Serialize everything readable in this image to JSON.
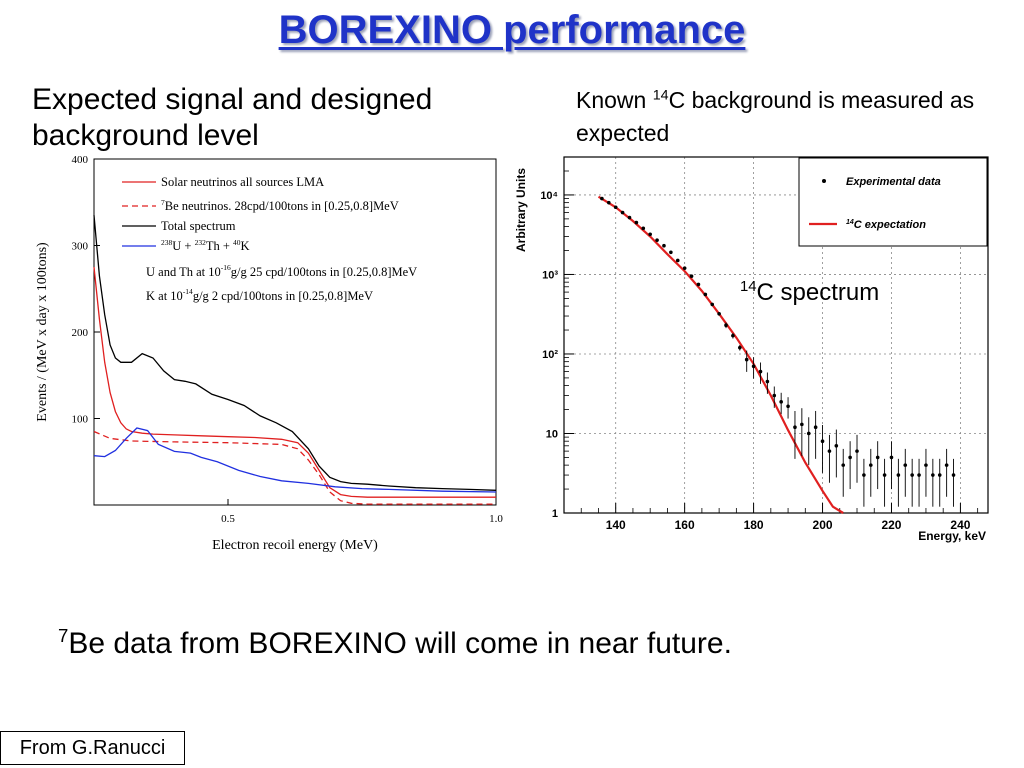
{
  "slide": {
    "title": "BOREXINO performance",
    "left_heading": "Expected signal and designed background level",
    "right_heading_pre": "Known ",
    "right_heading_sup": "14",
    "right_heading_post": "C background is measured as expected",
    "c14_label_sup": "14",
    "c14_label_text": "C spectrum",
    "footnote_sup": "7",
    "footnote_text": "Be data from BOREXINO will come in near future.",
    "credit": "From G.Ranucci"
  },
  "chart_data": [
    {
      "type": "line",
      "xlabel": "Electron recoil energy (MeV)",
      "ylabel": "Events / (MeV x day x 100tons)",
      "xlim": [
        0.25,
        1.0
      ],
      "ylim": [
        0,
        400
      ],
      "x_ticks": [
        0.5,
        1.0
      ],
      "x_tick_labels": [
        "0.5",
        "1.0"
      ],
      "y_ticks": [
        100,
        200,
        300,
        400
      ],
      "y_tick_labels": [
        "100",
        "200",
        "300",
        "400"
      ],
      "legend": [
        {
          "text": "Solar neutrinos all sources LMA",
          "color": "#e02020",
          "dash": "solid"
        },
        {
          "sup": "7",
          "text": "Be neutrinos. 28cpd/100tons in [0.25,0.8]MeV",
          "color": "#e02020",
          "dash": "dashed"
        },
        {
          "text": "Total spectrum",
          "color": "#000000",
          "dash": "solid"
        },
        {
          "text": "U + Th + K",
          "sup_u": "238",
          "sup_th": "232",
          "sup_k": "40",
          "color": "#2030e0",
          "dash": "solid"
        }
      ],
      "legend_notes": [
        {
          "pre": "U and Th at 10",
          "sup": "-16",
          "post": "g/g 25 cpd/100tons in [0.25,0.8]MeV"
        },
        {
          "pre": "K at 10",
          "sup": "-14",
          "post": "g/g 2 cpd/100tons in [0.25,0.8]MeV"
        }
      ],
      "series": [
        {
          "name": "Total spectrum",
          "color": "#000000",
          "dash": "solid",
          "x": [
            0.25,
            0.26,
            0.27,
            0.28,
            0.29,
            0.3,
            0.32,
            0.34,
            0.36,
            0.38,
            0.4,
            0.42,
            0.44,
            0.47,
            0.5,
            0.53,
            0.56,
            0.59,
            0.62,
            0.65,
            0.67,
            0.69,
            0.71,
            0.73,
            0.76,
            0.8,
            0.85,
            0.9,
            0.95,
            1.0
          ],
          "y": [
            335,
            265,
            220,
            185,
            170,
            165,
            165,
            175,
            170,
            155,
            145,
            143,
            140,
            128,
            122,
            115,
            103,
            95,
            85,
            65,
            45,
            32,
            27,
            25,
            24,
            22,
            20,
            19,
            18,
            17
          ]
        },
        {
          "name": "Solar neutrinos all sources LMA",
          "color": "#e02020",
          "dash": "solid",
          "x": [
            0.25,
            0.26,
            0.27,
            0.28,
            0.29,
            0.3,
            0.31,
            0.32,
            0.34,
            0.36,
            0.4,
            0.45,
            0.5,
            0.55,
            0.6,
            0.63,
            0.65,
            0.67,
            0.69,
            0.71,
            0.73,
            0.76,
            0.8,
            0.9,
            1.0
          ],
          "y": [
            275,
            215,
            165,
            130,
            108,
            95,
            88,
            85,
            83,
            82,
            81,
            80,
            79,
            78,
            76,
            72,
            60,
            40,
            20,
            12,
            10,
            9,
            9,
            9,
            9
          ]
        },
        {
          "name": "Be neutrinos",
          "color": "#e02020",
          "dash": "dashed",
          "x": [
            0.25,
            0.28,
            0.32,
            0.4,
            0.5,
            0.6,
            0.63,
            0.65,
            0.67,
            0.69,
            0.71,
            0.73,
            0.76,
            0.8,
            0.9,
            1.0
          ],
          "y": [
            85,
            77,
            74,
            73,
            72,
            70,
            65,
            52,
            35,
            15,
            5,
            2,
            1,
            1,
            1,
            1
          ]
        },
        {
          "name": "U + Th + K",
          "color": "#2030e0",
          "dash": "solid",
          "x": [
            0.25,
            0.27,
            0.29,
            0.31,
            0.33,
            0.35,
            0.37,
            0.4,
            0.43,
            0.45,
            0.48,
            0.52,
            0.56,
            0.6,
            0.65,
            0.7,
            0.75,
            0.8,
            0.9,
            1.0
          ],
          "y": [
            57,
            56,
            63,
            77,
            89,
            86,
            70,
            62,
            60,
            55,
            50,
            40,
            33,
            28,
            25,
            21,
            19,
            18,
            16,
            15
          ]
        }
      ]
    },
    {
      "type": "scatter",
      "xlabel": "Energy, keV",
      "ylabel": "Arbitrary Units",
      "xlim": [
        125,
        248
      ],
      "ylim": [
        1,
        30000
      ],
      "log_y": true,
      "x_ticks": [
        140,
        160,
        180,
        200,
        220,
        240
      ],
      "x_tick_labels": [
        "140",
        "160",
        "180",
        "200",
        "220",
        "240"
      ],
      "y_ticks": [
        1,
        10,
        100,
        1000,
        10000
      ],
      "y_tick_labels": [
        "1",
        "10",
        "10²",
        "10³",
        "10⁴"
      ],
      "grid": true,
      "legend_position": "top-right",
      "legend": [
        {
          "text": "Experimental data",
          "color": "#000000",
          "marker": "dot"
        },
        {
          "sup": "14",
          "text": "C expectation",
          "color": "#e02020",
          "marker": "line"
        }
      ],
      "series": [
        {
          "name": "Experimental data",
          "color": "#000000",
          "x": [
            136,
            138,
            140,
            142,
            144,
            146,
            148,
            150,
            152,
            154,
            156,
            158,
            160,
            162,
            164,
            166,
            168,
            170,
            172,
            174,
            176,
            178,
            180,
            182,
            184,
            186,
            188,
            190,
            192,
            194,
            196,
            198,
            200,
            202,
            204,
            206,
            208,
            210,
            212,
            214,
            216,
            218,
            220,
            222,
            224,
            226,
            228,
            230,
            232,
            234,
            236,
            238
          ],
          "y": [
            9000,
            8000,
            7000,
            6000,
            5200,
            4500,
            3800,
            3200,
            2700,
            2300,
            1900,
            1500,
            1200,
            950,
            750,
            560,
            420,
            320,
            230,
            170,
            120,
            85,
            70,
            60,
            45,
            30,
            25,
            22,
            12,
            13,
            10,
            12,
            8,
            6,
            7,
            4,
            5,
            6,
            3,
            4,
            5,
            3,
            5,
            3,
            4,
            3,
            3,
            4,
            3,
            3,
            4,
            3
          ]
        },
        {
          "name": "C expectation",
          "color": "#e02020",
          "x": [
            135,
            140,
            145,
            150,
            155,
            160,
            165,
            170,
            175,
            180,
            185,
            190,
            195,
            200,
            203,
            206
          ],
          "y": [
            9500,
            7000,
            4700,
            3000,
            1800,
            1100,
            620,
            320,
            160,
            75,
            30,
            11,
            4.3,
            1.9,
            1.2,
            1.0
          ]
        }
      ]
    }
  ]
}
